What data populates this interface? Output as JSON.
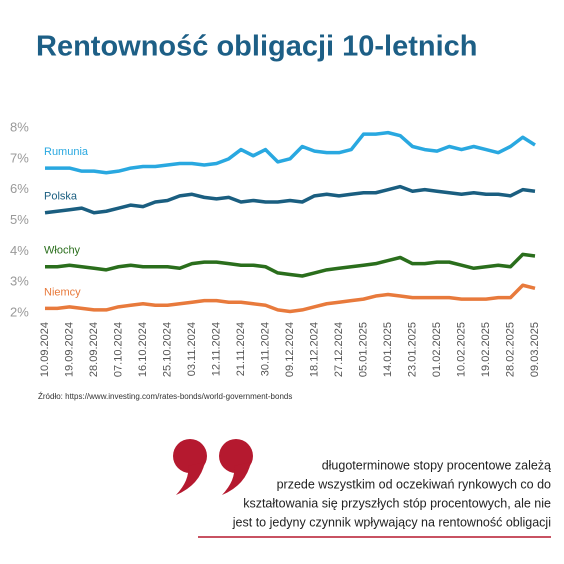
{
  "chart_data": {
    "type": "line",
    "title": "Rentowność obligacji 10-letnich",
    "categories": [
      "10.09.2024",
      null,
      "19.09.2024",
      null,
      "28.09.2024",
      null,
      "07.10.2024",
      null,
      "16.10.2024",
      null,
      "25.10.2024",
      null,
      "03.11.2024",
      null,
      "12.11.2024",
      null,
      "21.11.2024",
      null,
      "30.11.2024",
      null,
      "09.12.2024",
      null,
      "18.12.2024",
      null,
      "27.12.2024",
      null,
      "05.01.2025",
      null,
      "14.01.2025",
      null,
      "23.01.2025",
      null,
      "01.02.2025",
      null,
      "10.02.2025",
      null,
      "19.02.2025",
      null,
      "28.02.2025",
      null,
      "09.03.2025"
    ],
    "series": [
      {
        "name": "Rumunia",
        "color": "#29a8e0",
        "values": [
          6.7,
          6.7,
          6.7,
          6.6,
          6.6,
          6.55,
          6.6,
          6.7,
          6.75,
          6.75,
          6.8,
          6.85,
          6.85,
          6.8,
          6.85,
          7.0,
          7.3,
          7.1,
          7.3,
          6.9,
          7.0,
          7.4,
          7.25,
          7.2,
          7.2,
          7.3,
          7.8,
          7.8,
          7.85,
          7.75,
          7.4,
          7.3,
          7.25,
          7.4,
          7.3,
          7.4,
          7.3,
          7.2,
          7.4,
          7.7,
          7.45
        ]
      },
      {
        "name": "Polska",
        "color": "#1a5e80",
        "values": [
          5.25,
          5.3,
          5.35,
          5.4,
          5.25,
          5.3,
          5.4,
          5.5,
          5.45,
          5.6,
          5.65,
          5.8,
          5.85,
          5.75,
          5.7,
          5.75,
          5.6,
          5.65,
          5.6,
          5.6,
          5.65,
          5.6,
          5.8,
          5.85,
          5.8,
          5.85,
          5.9,
          5.9,
          6.0,
          6.1,
          5.95,
          6.0,
          5.95,
          5.9,
          5.85,
          5.9,
          5.85,
          5.85,
          5.8,
          6.0,
          5.95
        ]
      },
      {
        "name": "Włochy",
        "color": "#2a6e1c",
        "values": [
          3.5,
          3.5,
          3.55,
          3.5,
          3.45,
          3.4,
          3.5,
          3.55,
          3.5,
          3.5,
          3.5,
          3.45,
          3.6,
          3.65,
          3.65,
          3.6,
          3.55,
          3.55,
          3.5,
          3.3,
          3.25,
          3.2,
          3.3,
          3.4,
          3.45,
          3.5,
          3.55,
          3.6,
          3.7,
          3.8,
          3.6,
          3.6,
          3.65,
          3.65,
          3.55,
          3.45,
          3.5,
          3.55,
          3.5,
          3.9,
          3.85
        ]
      },
      {
        "name": "Niemcy",
        "color": "#e87a3c",
        "values": [
          2.15,
          2.15,
          2.2,
          2.15,
          2.1,
          2.1,
          2.2,
          2.25,
          2.3,
          2.25,
          2.25,
          2.3,
          2.35,
          2.4,
          2.4,
          2.35,
          2.35,
          2.3,
          2.25,
          2.1,
          2.05,
          2.1,
          2.2,
          2.3,
          2.35,
          2.4,
          2.45,
          2.55,
          2.6,
          2.55,
          2.5,
          2.5,
          2.5,
          2.5,
          2.45,
          2.45,
          2.45,
          2.5,
          2.5,
          2.9,
          2.8
        ]
      }
    ],
    "ylim": [
      2,
      8
    ],
    "yticks": [
      {
        "value": 2,
        "label": "2%"
      },
      {
        "value": 3,
        "label": "3%"
      },
      {
        "value": 4,
        "label": "4%"
      },
      {
        "value": 5,
        "label": "5%"
      },
      {
        "value": 6,
        "label": "6%"
      },
      {
        "value": 7,
        "label": "7%"
      },
      {
        "value": 8,
        "label": "8%"
      }
    ],
    "source": "Źródło: https://www.investing.com/rates-bonds/world-government-bonds",
    "quote": [
      "długoterminowe stopy procentowe zależą",
      "przede wszystkim od oczekiwań rynkowych co do",
      "kształtowania się przyszłych stóp procentowych, ale nie",
      "jest to jedyny czynnik wpływający na rentowność obligacji"
    ]
  }
}
